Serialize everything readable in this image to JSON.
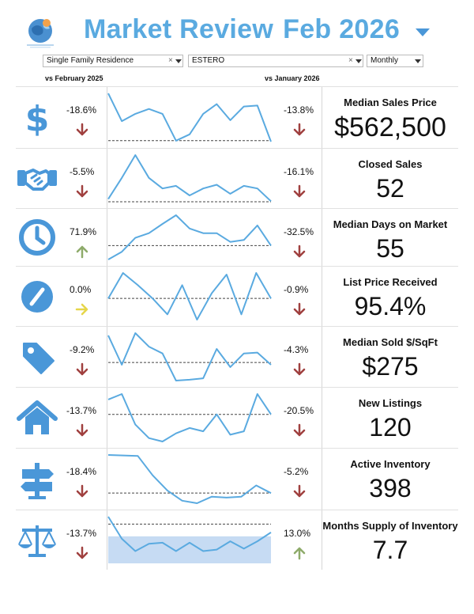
{
  "header": {
    "title": "Market Review",
    "period": "Feb 2026",
    "title_color": "#5aaae0",
    "logo_icon": "globe-logo-icon",
    "toggle_icon": "caret-down-icon"
  },
  "filters": {
    "property_type": "Single Family Residence",
    "area": "ESTERO",
    "interval": "Monthly"
  },
  "compare": {
    "yoy_label": "vs February 2025",
    "mom_label": "vs January 2026"
  },
  "colors": {
    "icon": "#4a97d8",
    "sparkline": "#5aaae0",
    "down": "#a0403f",
    "up": "#8eab6a",
    "flat": "#e6d64a",
    "band": "#c6dbf3"
  },
  "metrics": [
    {
      "title": "Median Sales Price",
      "value": "$562,500",
      "icon": "dollar-sign-icon",
      "yoy": "-18.6%",
      "yoy_dir": "down",
      "mom": "-13.8%",
      "mom_dir": "down",
      "spark": [
        0.97,
        0.4,
        0.55,
        0.65,
        0.55,
        0.0,
        0.13,
        0.55,
        0.75,
        0.42,
        0.7,
        0.72,
        -0.02
      ],
      "baseline": 0.0
    },
    {
      "title": "Closed Sales",
      "value": "52",
      "icon": "handshake-icon",
      "yoy": "-5.5%",
      "yoy_dir": "down",
      "mom": "-16.1%",
      "mom_dir": "down",
      "spark": [
        0.05,
        0.45,
        0.88,
        0.45,
        0.25,
        0.3,
        0.12,
        0.25,
        0.32,
        0.15,
        0.3,
        0.25,
        0.01
      ],
      "baseline": 0.0
    },
    {
      "title": "Median Days on Market",
      "value": "55",
      "icon": "clock-icon",
      "yoy": "71.9%",
      "yoy_dir": "up",
      "mom": "-32.5%",
      "mom_dir": "down",
      "spark": [
        -0.45,
        -0.2,
        0.25,
        0.4,
        0.7,
        0.98,
        0.55,
        0.4,
        0.4,
        0.12,
        0.18,
        0.65,
        0.0
      ],
      "baseline": 0.0
    },
    {
      "title": "List Price Received",
      "value": "95.4%",
      "icon": "gauge-icon",
      "yoy": "0.0%",
      "yoy_dir": "flat",
      "mom": "-0.9%",
      "mom_dir": "down",
      "spark": [
        0.0,
        0.48,
        0.25,
        0.0,
        -0.3,
        0.25,
        -0.4,
        0.1,
        0.45,
        -0.3,
        0.48,
        0.0
      ],
      "baseline": 0.0
    },
    {
      "title": "Median Sold $/SqFt",
      "value": "$275",
      "icon": "price-tag-icon",
      "yoy": "-9.2%",
      "yoy_dir": "down",
      "mom": "-4.3%",
      "mom_dir": "down",
      "spark": [
        0.6,
        -0.05,
        0.65,
        0.35,
        0.2,
        -0.4,
        -0.38,
        -0.35,
        0.3,
        -0.1,
        0.2,
        0.22,
        -0.05
      ],
      "baseline": 0.0
    },
    {
      "title": "New Listings",
      "value": "120",
      "icon": "house-icon",
      "yoy": "-13.7%",
      "yoy_dir": "down",
      "mom": "-20.5%",
      "mom_dir": "down",
      "spark": [
        0.22,
        0.3,
        -0.15,
        -0.35,
        -0.4,
        -0.28,
        -0.2,
        -0.25,
        0.0,
        -0.3,
        -0.25,
        0.3,
        0.0
      ],
      "baseline": 0.0
    },
    {
      "title": "Active Inventory",
      "value": "398",
      "icon": "signpost-icon",
      "yoy": "-18.4%",
      "yoy_dir": "down",
      "mom": "-5.2%",
      "mom_dir": "down",
      "spark": [
        1.0,
        0.99,
        0.98,
        0.6,
        0.3,
        0.1,
        0.05,
        0.18,
        0.16,
        0.18,
        0.4,
        0.25
      ],
      "baseline": 0.25
    },
    {
      "title": "Months Supply of Inventory",
      "value": "7.7",
      "icon": "scales-icon",
      "yoy": "-13.7%",
      "yoy_dir": "down",
      "mom": "13.0%",
      "mom_dir": "up",
      "spark": [
        0.95,
        0.5,
        0.25,
        0.4,
        0.42,
        0.25,
        0.42,
        0.25,
        0.28,
        0.45,
        0.3,
        0.45,
        0.63
      ],
      "baseline": 0.8,
      "band": [
        0.0,
        0.55
      ]
    }
  ]
}
